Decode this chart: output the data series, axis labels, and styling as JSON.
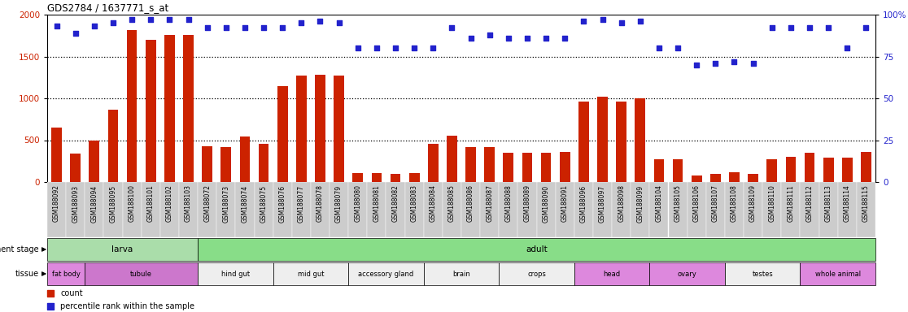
{
  "title": "GDS2784 / 1637771_s_at",
  "samples": [
    "GSM188092",
    "GSM188093",
    "GSM188094",
    "GSM188095",
    "GSM188100",
    "GSM188101",
    "GSM188102",
    "GSM188103",
    "GSM188072",
    "GSM188073",
    "GSM188074",
    "GSM188075",
    "GSM188076",
    "GSM188077",
    "GSM188078",
    "GSM188079",
    "GSM188080",
    "GSM188081",
    "GSM188082",
    "GSM188083",
    "GSM188084",
    "GSM188085",
    "GSM188086",
    "GSM188087",
    "GSM188088",
    "GSM188089",
    "GSM188090",
    "GSM188091",
    "GSM188096",
    "GSM188097",
    "GSM188098",
    "GSM188099",
    "GSM188104",
    "GSM188105",
    "GSM188106",
    "GSM188107",
    "GSM188108",
    "GSM188109",
    "GSM188110",
    "GSM188111",
    "GSM188112",
    "GSM188113",
    "GSM188114",
    "GSM188115"
  ],
  "counts": [
    650,
    340,
    500,
    860,
    1820,
    1700,
    1760,
    1760,
    430,
    420,
    540,
    460,
    1150,
    1270,
    1280,
    1270,
    110,
    110,
    100,
    110,
    460,
    550,
    420,
    420,
    350,
    350,
    350,
    360,
    960,
    1020,
    960,
    1000,
    270,
    270,
    80,
    100,
    120,
    100,
    270,
    300,
    350,
    290,
    290,
    360
  ],
  "percentile": [
    93,
    89,
    93,
    95,
    97,
    97,
    97,
    97,
    92,
    92,
    92,
    92,
    92,
    95,
    96,
    95,
    80,
    80,
    80,
    80,
    80,
    92,
    86,
    88,
    86,
    86,
    86,
    86,
    96,
    97,
    95,
    96,
    80,
    80,
    70,
    71,
    72,
    71,
    92,
    92,
    92,
    92,
    80,
    92
  ],
  "ylim_left": [
    0,
    2000
  ],
  "ylim_right": [
    0,
    100
  ],
  "yticks_left": [
    0,
    500,
    1000,
    1500,
    2000
  ],
  "yticks_right": [
    0,
    25,
    50,
    75,
    100
  ],
  "bar_color": "#cc2200",
  "dot_color": "#2222cc",
  "dot_size": 22,
  "development_stage_groups": [
    {
      "label": "larva",
      "start": 0,
      "end": 7,
      "color": "#aaddaa"
    },
    {
      "label": "adult",
      "start": 8,
      "end": 43,
      "color": "#88dd88"
    }
  ],
  "tissue_groups": [
    {
      "label": "fat body",
      "start": 0,
      "end": 1,
      "color": "#dd88dd"
    },
    {
      "label": "tubule",
      "start": 2,
      "end": 7,
      "color": "#cc77cc"
    },
    {
      "label": "hind gut",
      "start": 8,
      "end": 11,
      "color": "#eeeeee"
    },
    {
      "label": "mid gut",
      "start": 12,
      "end": 15,
      "color": "#eeeeee"
    },
    {
      "label": "accessory gland",
      "start": 16,
      "end": 19,
      "color": "#eeeeee"
    },
    {
      "label": "brain",
      "start": 20,
      "end": 23,
      "color": "#eeeeee"
    },
    {
      "label": "crops",
      "start": 24,
      "end": 27,
      "color": "#eeeeee"
    },
    {
      "label": "head",
      "start": 28,
      "end": 31,
      "color": "#dd88dd"
    },
    {
      "label": "ovary",
      "start": 32,
      "end": 35,
      "color": "#dd88dd"
    },
    {
      "label": "testes",
      "start": 36,
      "end": 39,
      "color": "#eeeeee"
    },
    {
      "label": "whole animal",
      "start": 40,
      "end": 43,
      "color": "#dd88dd"
    }
  ],
  "bg_color": "#ffffff",
  "bar_width": 0.55,
  "tick_bg": "#cccccc",
  "tick_label_fontsize": 5.5
}
